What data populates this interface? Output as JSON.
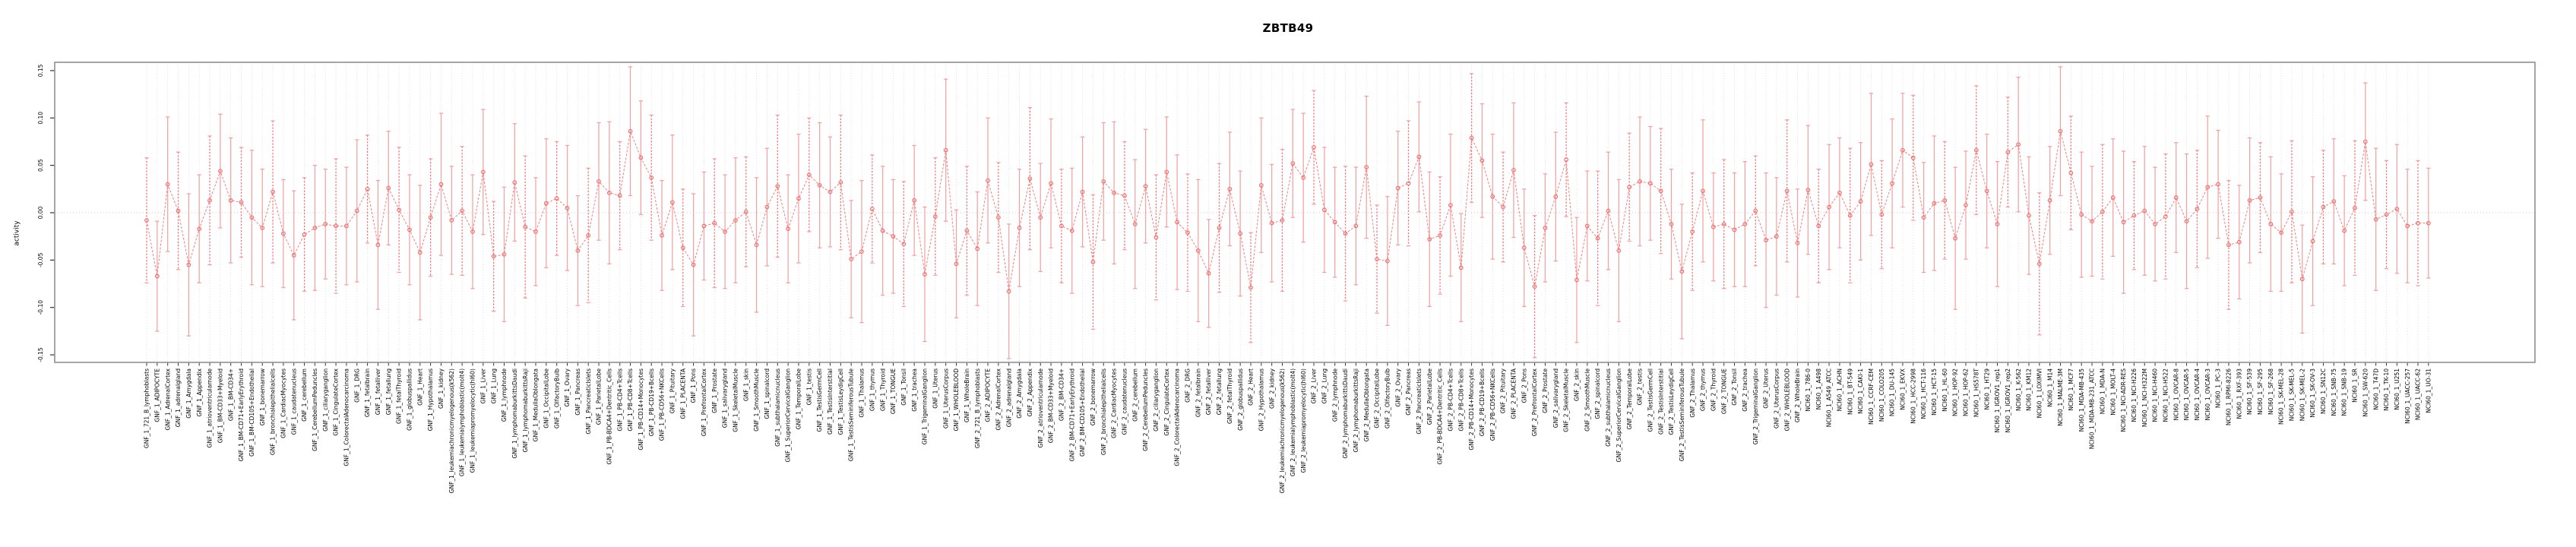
{
  "chart_data": {
    "type": "scatter",
    "title": "ZBTB49",
    "ylabel": "activity",
    "xlabel": "",
    "ylim": [
      -0.158,
      0.159
    ],
    "yticks": [
      0.15,
      0.1,
      0.05,
      0.0,
      -0.05,
      -0.1,
      -0.15
    ],
    "ytick_labels": [
      "0.15",
      "0.10",
      "0.05",
      "0.00",
      "-0.05",
      "-0.10",
      "-0.15"
    ],
    "grid": "vertical-dotted-per-category, dotted-zero-line",
    "legend": "none",
    "marker": "open-circle-with-error-bars, dashed connecting line",
    "err_cycle": [
      0.066,
      0.058,
      0.071,
      0.062,
      0.075,
      0.057,
      0.068,
      0.06
    ],
    "samples": [
      [
        "GNF_1_721_B_lymphoblasts",
        -0.008
      ],
      [
        "GNF_1_ADIPOCYTE",
        -0.067
      ],
      [
        "GNF_1_AdrenalCortex",
        0.03
      ],
      [
        "GNF_1_adrenalgland",
        0.002
      ],
      [
        "GNF_1_Amygdala",
        -0.055
      ],
      [
        "GNF_1_Appendix",
        -0.017
      ],
      [
        "GNF_1_atrioventricularnode",
        0.013
      ],
      [
        "GNF_1_BM-CD33+Myeloid",
        0.044
      ],
      [
        "GNF_1_BM-CD34+",
        0.013
      ],
      [
        "GNF_1_BM-CD71+EarlyErythroid",
        0.011
      ],
      [
        "GNF_1_BM-CD105+Endothelial",
        -0.005
      ],
      [
        "GNF_1_bonemarrow",
        -0.016
      ],
      [
        "GNF_1_bronchialepithelialcells",
        0.022
      ],
      [
        "GNF_1_CardiacMyocytes",
        -0.022
      ],
      [
        "GNF_1_caudatenucleus",
        -0.045
      ],
      [
        "GNF_1_cerebellum",
        -0.023
      ],
      [
        "GNF_1_CerebellumPeduncles",
        -0.016
      ],
      [
        "GNF_1_ciliaryganglion",
        -0.012
      ],
      [
        "GNF_1_CingulateCortex",
        -0.014
      ],
      [
        "GNF_1_ColorectalAdenocarcinoma",
        -0.014
      ],
      [
        "GNF_1_DRG",
        0.002
      ],
      [
        "GNF_1_fetalbrain",
        0.025
      ],
      [
        "GNF_1_fetalliver",
        -0.034
      ],
      [
        "GNF_1_fetallung",
        0.026
      ],
      [
        "GNF_1_fetalThyroid",
        0.003
      ],
      [
        "GNF_1_globuspallidus",
        -0.018
      ],
      [
        "GNF_1_Heart",
        -0.042
      ],
      [
        "GNF_1_Hypothalamus",
        -0.005
      ],
      [
        "GNF_1_kidney",
        0.03
      ],
      [
        "GNF_1_leukemiachronicmyelogenous(k562)",
        -0.008
      ],
      [
        "GNF_1_leukemialymphoblastic(molt4)",
        0.002
      ],
      [
        "GNF_1_leukemiapromyelocytic(hl60)",
        -0.02
      ],
      [
        "GNF_1_Liver",
        0.043
      ],
      [
        "GNF_1_Lung",
        -0.046
      ],
      [
        "GNF_1_lymphnode",
        -0.044
      ],
      [
        "GNF_1_lymphomaburkittsDaudi",
        0.032
      ],
      [
        "GNF_1_lymphomaburkittsRaji",
        -0.015
      ],
      [
        "GNF_1_MedullaOblongata",
        -0.02
      ],
      [
        "GNF_1_OccipitalLobe",
        0.01
      ],
      [
        "GNF_1_OlfactoryBulb",
        0.015
      ],
      [
        "GNF_1_Ovary",
        0.005
      ],
      [
        "GNF_1_Pancreas",
        -0.04
      ],
      [
        "GNF_1_PancreaticIslets",
        -0.024
      ],
      [
        "GNF_1_ParietalLobe",
        0.033
      ],
      [
        "GNF_1_PB-BDCA4+Dentritic_Cells",
        0.021
      ],
      [
        "GNF_1_PB-CD4+Tcells",
        0.018
      ],
      [
        "GNF_1_PB-CD8+Tcells",
        0.086
      ],
      [
        "GNF_1_PB-CD14+Monocytes",
        0.058
      ],
      [
        "GNF_1_PB-CD19+Bcells",
        0.037
      ],
      [
        "GNF_1_PB-CD56+NKCells",
        -0.024
      ],
      [
        "GNF_1_Pituitary",
        0.011
      ],
      [
        "GNF_1_PLACENTA",
        -0.037
      ],
      [
        "GNF_1_Pons",
        -0.055
      ],
      [
        "GNF_1_PrefrontalCortex",
        -0.014
      ],
      [
        "GNF_1_Prostate",
        -0.011
      ],
      [
        "GNF_1_salivarygland",
        -0.02
      ],
      [
        "GNF_1_SkeletalMuscle",
        -0.008
      ],
      [
        "GNF_1_skin",
        0.001
      ],
      [
        "GNF_1_SmoothMuscle",
        -0.034
      ],
      [
        "GNF_1_spinalcord",
        0.006
      ],
      [
        "GNF_1_subthalamicnucleus",
        0.028
      ],
      [
        "GNF_1_SuperiorCervicalGanglion",
        -0.017
      ],
      [
        "GNF_1_TemporalLobe",
        0.015
      ],
      [
        "GNF_1_testis",
        0.04
      ],
      [
        "GNF_1_TestisGermCell",
        0.029
      ],
      [
        "GNF_1_TestisInterstitial",
        0.022
      ],
      [
        "GNF_1_TestisLeydigCell",
        0.032
      ],
      [
        "GNF_1_TestisSeminiferousTubule",
        -0.049
      ],
      [
        "GNF_1_Thalamus",
        -0.041
      ],
      [
        "GNF_1_thymus",
        0.004
      ],
      [
        "GNF_1_Thyroid",
        -0.019
      ],
      [
        "GNF_1_TONGUE",
        -0.025
      ],
      [
        "GNF_1_Tonsil",
        -0.033
      ],
      [
        "GNF_1_trachea",
        0.013
      ],
      [
        "GNF_1_TrigeminalGanglion",
        -0.065
      ],
      [
        "GNF_1_Uterus",
        -0.004
      ],
      [
        "GNF_1_UterusCorpus",
        0.066
      ],
      [
        "GNF_1_WHOLEBLOOD",
        -0.054
      ],
      [
        "GNF_1_WholeBrain",
        -0.019
      ],
      [
        "GNF_2_721_B_lymphoblasts",
        -0.038
      ],
      [
        "GNF_2_ADIPOCYTE",
        0.034
      ],
      [
        "GNF_2_AdrenalCortex",
        -0.005
      ],
      [
        "GNF_2_adrenalgland",
        -0.083
      ],
      [
        "GNF_2_Amygdala",
        -0.016
      ],
      [
        "GNF_2_Appendix",
        0.036
      ],
      [
        "GNF_2_atrioventricularnode",
        -0.005
      ],
      [
        "GNF_2_BM-CD33+Myeloid",
        0.031
      ],
      [
        "GNF_2_BM-CD34+",
        -0.014
      ],
      [
        "GNF_2_BM-CD71+EarlyErythroid",
        -0.019
      ],
      [
        "GNF_2_BM-CD105+Endothelial",
        0.022
      ],
      [
        "GNF_2_bonemarrow",
        -0.052
      ],
      [
        "GNF_2_bronchialepithelialcells",
        0.033
      ],
      [
        "GNF_2_CardiacMyocytes",
        0.021
      ],
      [
        "GNF_2_caudatenucleus",
        0.018
      ],
      [
        "GNF_2_cerebellum",
        -0.012
      ],
      [
        "GNF_2_CerebellumPeduncles",
        0.028
      ],
      [
        "GNF_2_ciliaryganglion",
        -0.026
      ],
      [
        "GNF_2_CingulateCortex",
        0.043
      ],
      [
        "GNF_2_ColorectalAdenocarcinoma",
        -0.01
      ],
      [
        "GNF_2_DRG",
        -0.021
      ],
      [
        "GNF_2_fetalbrain",
        -0.04
      ],
      [
        "GNF_2_fetalliver",
        -0.064
      ],
      [
        "GNF_2_fetallung",
        -0.016
      ],
      [
        "GNF_2_fetalThyroid",
        0.025
      ],
      [
        "GNF_2_globuspallidus",
        -0.022
      ],
      [
        "GNF_2_Heart",
        -0.079
      ],
      [
        "GNF_2_Hypothalamus",
        0.029
      ],
      [
        "GNF_2_kidney",
        -0.011
      ],
      [
        "GNF_2_leukemiachronicmyelogenous(k562)",
        -0.008
      ],
      [
        "GNF_2_leukemialymphoblastic(molt4)",
        0.052
      ],
      [
        "GNF_2_leukemiapromyelocytic(hl60)",
        0.037
      ],
      [
        "GNF_2_Liver",
        0.069
      ],
      [
        "GNF_2_Lung",
        0.003
      ],
      [
        "GNF_2_lymphnode",
        -0.01
      ],
      [
        "GNF_2_lymphomaburkittsDaudi",
        -0.022
      ],
      [
        "GNF_2_lymphomaburkittsRaji",
        -0.014
      ],
      [
        "GNF_2_MedullaOblongata",
        0.048
      ],
      [
        "GNF_2_OccipitalLobe",
        -0.049
      ],
      [
        "GNF_2_OlfactoryBulb",
        -0.051
      ],
      [
        "GNF_2_Ovary",
        0.026
      ],
      [
        "GNF_2_Pancreas",
        0.031
      ],
      [
        "GNF_2_PancreaticIslets",
        0.059
      ],
      [
        "GNF_2_ParietalLobe",
        -0.028
      ],
      [
        "GNF_2_PB-BDCA4+Dentritic_Cells",
        -0.024
      ],
      [
        "GNF_2_PB-CD4+Tcells",
        0.008
      ],
      [
        "GNF_2_PB-CD8+Tcells",
        -0.058
      ],
      [
        "GNF_2_PB-CD14+Monocytes",
        0.079
      ],
      [
        "GNF_2_PB-CD19+Bcells",
        0.055
      ],
      [
        "GNF_2_PB-CD56+NKCells",
        0.017
      ],
      [
        "GNF_2_Pituitary",
        0.006
      ],
      [
        "GNF_2_PLACENTA",
        0.045
      ],
      [
        "GNF_2_Pons",
        -0.037
      ],
      [
        "GNF_2_PrefrontalCortex",
        -0.078
      ],
      [
        "GNF_2_Prostate",
        -0.016
      ],
      [
        "GNF_2_salivarygland",
        0.017
      ],
      [
        "GNF_2_SkeletalMuscle",
        0.056
      ],
      [
        "GNF_2_skin",
        -0.071
      ],
      [
        "GNF_2_SmoothMuscle",
        -0.014
      ],
      [
        "GNF_2_spinalcord",
        -0.027
      ],
      [
        "GNF_2_subthalamicnucleus",
        0.002
      ],
      [
        "GNF_2_SuperiorCervicalGanglion",
        -0.04
      ],
      [
        "GNF_2_TemporalLobe",
        0.027
      ],
      [
        "GNF_2_testis",
        0.033
      ],
      [
        "GNF_2_TestisGermCell",
        0.031
      ],
      [
        "GNF_2_TestisInterstitial",
        0.023
      ],
      [
        "GNF_2_TestisLeydigCell",
        -0.012
      ],
      [
        "GNF_2_TestisSeminiferousTubule",
        -0.062
      ],
      [
        "GNF_2_Thalamus",
        -0.02
      ],
      [
        "GNF_2_thymus",
        0.023
      ],
      [
        "GNF_2_Thyroid",
        -0.015
      ],
      [
        "GNF_2_TONGUE",
        -0.012
      ],
      [
        "GNF_2_Tonsil",
        -0.018
      ],
      [
        "GNF_2_trachea",
        -0.012
      ],
      [
        "GNF_2_TrigeminalGanglion",
        0.002
      ],
      [
        "GNF_2_Uterus",
        -0.029
      ],
      [
        "GNF_2_UterusCorpus",
        -0.025
      ],
      [
        "GNF_2_WHOLEBLOOD",
        0.023
      ],
      [
        "GNF_2_WholeBrain",
        -0.032
      ],
      [
        "NCI60_1_786-0",
        0.024
      ],
      [
        "NCI60_1_A498",
        -0.014
      ],
      [
        "NCI60_1_A549_ATCC",
        0.006
      ],
      [
        "NCI60_1_ACHN",
        0.021
      ],
      [
        "NCI60_1_BT-549",
        -0.003
      ],
      [
        "NCI60_1_CAKI-1",
        0.012
      ],
      [
        "NCI60_1_CCRF-CEM",
        0.051
      ],
      [
        "NCI60_1_COLO205",
        -0.002
      ],
      [
        "NCI60_1_DU-145",
        0.031
      ],
      [
        "NCI60_1_EKVX",
        0.066
      ],
      [
        "NCI60_1_HCC-2998",
        0.058
      ],
      [
        "NCI60_1_HCT-116",
        -0.005
      ],
      [
        "NCI60_1_HCT-15",
        0.01
      ],
      [
        "NCI60_1_HL-60",
        0.013
      ],
      [
        "NCI60_1_HOP-92",
        -0.027
      ],
      [
        "NCI60_1_HOP-62",
        0.008
      ],
      [
        "NCI60_1_HS578T",
        0.066
      ],
      [
        "NCI60_1_HT29",
        0.023
      ],
      [
        "NCI60_1_IGROV1_rep1",
        -0.012
      ],
      [
        "NCI60_1_IGROV1_rep2",
        0.064
      ],
      [
        "NCI60_1_K-562",
        0.072
      ],
      [
        "NCI60_1_KM12",
        -0.003
      ],
      [
        "NCI60_1_LOXIMVI",
        -0.054
      ],
      [
        "NCI60_1_M14",
        0.013
      ],
      [
        "NCI60_1_MALME-3M",
        0.086
      ],
      [
        "NCI60_1_MCF7",
        0.042
      ],
      [
        "NCI60_1_MDA-MB-435",
        -0.002
      ],
      [
        "NCI60_1_MDA-MB-231_ATCC",
        -0.009
      ],
      [
        "NCI60_1_MDA-N",
        0.001
      ],
      [
        "NCI60_1_MOLT-4",
        0.016
      ],
      [
        "NCI60_1_NCI-ADR-RES",
        -0.01
      ],
      [
        "NCI60_1_NCI-H226",
        -0.003
      ],
      [
        "NCI60_1_NCI-H322M",
        0.002
      ],
      [
        "NCI60_1_NCI-H460",
        -0.012
      ],
      [
        "NCI60_1_NCI-H522",
        -0.004
      ],
      [
        "NCI60_1_OVCAR-8",
        0.016
      ],
      [
        "NCI60_1_OVCAR-5",
        -0.009
      ],
      [
        "NCI60_1_OVCAR-4",
        0.004
      ],
      [
        "NCI60_1_OVCAR-3",
        0.027
      ],
      [
        "NCI60_1_PC-3",
        0.03
      ],
      [
        "NCI60_1_RPMI-8226",
        -0.034
      ],
      [
        "NCI60_1_RXF-393",
        -0.031
      ],
      [
        "NCI60_1_SF-539",
        0.013
      ],
      [
        "NCI60_1_SF-295",
        0.016
      ],
      [
        "NCI60_1_SF-268",
        -0.012
      ],
      [
        "NCI60_1_SK-MEL-28",
        -0.021
      ],
      [
        "NCI60_1_SK-MEL-5",
        0.001
      ],
      [
        "NCI60_1_SK-MEL-2",
        -0.07
      ],
      [
        "NCI60_1_SK-OV-3",
        -0.03
      ],
      [
        "NCI60_1_SN12C",
        0.006
      ],
      [
        "NCI60_1_SNB-75",
        0.012
      ],
      [
        "NCI60_1_SNB-19",
        -0.019
      ],
      [
        "NCI60_1_SR",
        0.005
      ],
      [
        "NCI60_1_SW-620",
        0.075
      ],
      [
        "NCI60_1_T47D",
        -0.007
      ],
      [
        "NCI60_1_TK-10",
        -0.002
      ],
      [
        "NCI60_1_U251",
        0.004
      ],
      [
        "NCI60_1_UACC-257",
        -0.014
      ],
      [
        "NCI60_1_UACC-62",
        -0.011
      ],
      [
        "NCI60_1_UO-31",
        -0.011
      ]
    ],
    "colors": {
      "point": "#ee6f6f",
      "series_line": "#f08080",
      "error_bar": "#f2a2a2",
      "error_bar_dashed": "#ef7474",
      "gridline": "#d6d6d6",
      "zero_line": "#c9c9c9",
      "frame": "#8f8f8f",
      "text": "#000000"
    }
  }
}
